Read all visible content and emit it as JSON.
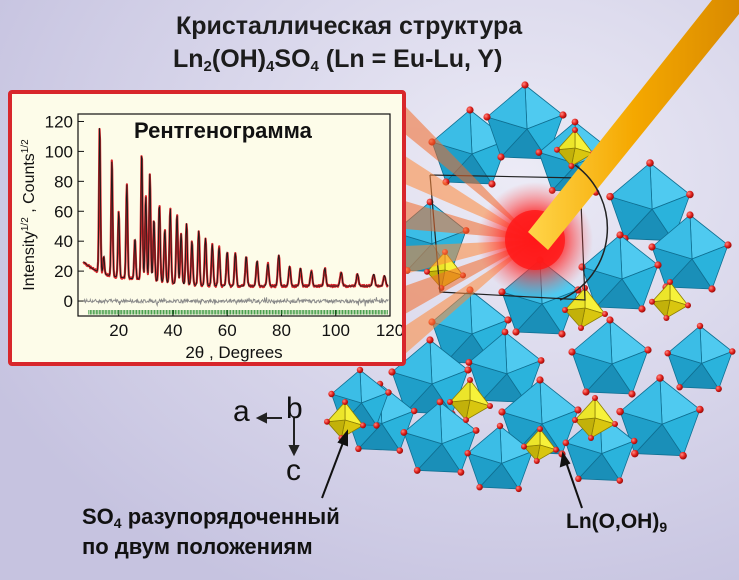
{
  "title": {
    "line1": "Кристаллическая структура",
    "line2_parts": [
      "Ln",
      "2",
      "(OH)",
      "4",
      "SO",
      "4",
      " (Ln = Eu-Lu, Y)"
    ]
  },
  "chart_data": {
    "type": "line",
    "title": "Рентгенограмма",
    "xlabel": "2θ , Degrees",
    "ylabel": "Intensity^1/2 , Counts^1/2",
    "ylabel_parts": [
      "Intensity",
      "1/2",
      " , Counts",
      "1/2"
    ],
    "xlim": [
      5,
      120
    ],
    "ylim": [
      -10,
      125
    ],
    "xticks": [
      20,
      40,
      60,
      80,
      100,
      120
    ],
    "yticks": [
      0,
      20,
      40,
      60,
      80,
      100,
      120
    ],
    "series": [
      {
        "kind": "observed",
        "color": "#d8262b"
      },
      {
        "kind": "calculated",
        "color": "#1a1a1a"
      },
      {
        "kind": "difference",
        "color": "#8a8a8a"
      },
      {
        "kind": "bragg-ticks",
        "color": "#1f8a2a"
      }
    ],
    "peaks": [
      {
        "x": 13.0,
        "y": 118
      },
      {
        "x": 14.5,
        "y": 30
      },
      {
        "x": 17.5,
        "y": 95
      },
      {
        "x": 20.0,
        "y": 60
      },
      {
        "x": 23.0,
        "y": 78
      },
      {
        "x": 26.0,
        "y": 42
      },
      {
        "x": 28.5,
        "y": 100
      },
      {
        "x": 30.0,
        "y": 70
      },
      {
        "x": 31.5,
        "y": 85
      },
      {
        "x": 33.0,
        "y": 55
      },
      {
        "x": 35.0,
        "y": 65
      },
      {
        "x": 37.0,
        "y": 48
      },
      {
        "x": 39.0,
        "y": 62
      },
      {
        "x": 41.5,
        "y": 58
      },
      {
        "x": 43.0,
        "y": 45
      },
      {
        "x": 45.0,
        "y": 52
      },
      {
        "x": 47.0,
        "y": 40
      },
      {
        "x": 49.5,
        "y": 47
      },
      {
        "x": 52.0,
        "y": 42
      },
      {
        "x": 54.5,
        "y": 38
      },
      {
        "x": 57.0,
        "y": 36
      },
      {
        "x": 60.0,
        "y": 33
      },
      {
        "x": 63.0,
        "y": 32
      },
      {
        "x": 67.0,
        "y": 30
      },
      {
        "x": 71.0,
        "y": 27
      },
      {
        "x": 75.0,
        "y": 25
      },
      {
        "x": 79.0,
        "y": 31
      },
      {
        "x": 83.0,
        "y": 23
      },
      {
        "x": 87.0,
        "y": 22
      },
      {
        "x": 91.0,
        "y": 20
      },
      {
        "x": 96.0,
        "y": 22
      },
      {
        "x": 102.0,
        "y": 19
      },
      {
        "x": 108.0,
        "y": 18
      },
      {
        "x": 114.0,
        "y": 18
      },
      {
        "x": 118.0,
        "y": 17
      }
    ]
  },
  "axes_labels": {
    "a": "a",
    "b": "b",
    "c": "c"
  },
  "caption": {
    "line1_parts": [
      "SO",
      "4",
      " разупорядоченный"
    ],
    "line2": "по двум положениям"
  },
  "polyhedron_label": {
    "parts": [
      "Ln(O,OH)",
      "9"
    ]
  },
  "colors": {
    "polyhedron": "#2ab3dc",
    "sulfate": "#f2ee1c",
    "oxygen": "#e0201c",
    "beam": "#f5a800",
    "inset_border": "#d8262b"
  }
}
